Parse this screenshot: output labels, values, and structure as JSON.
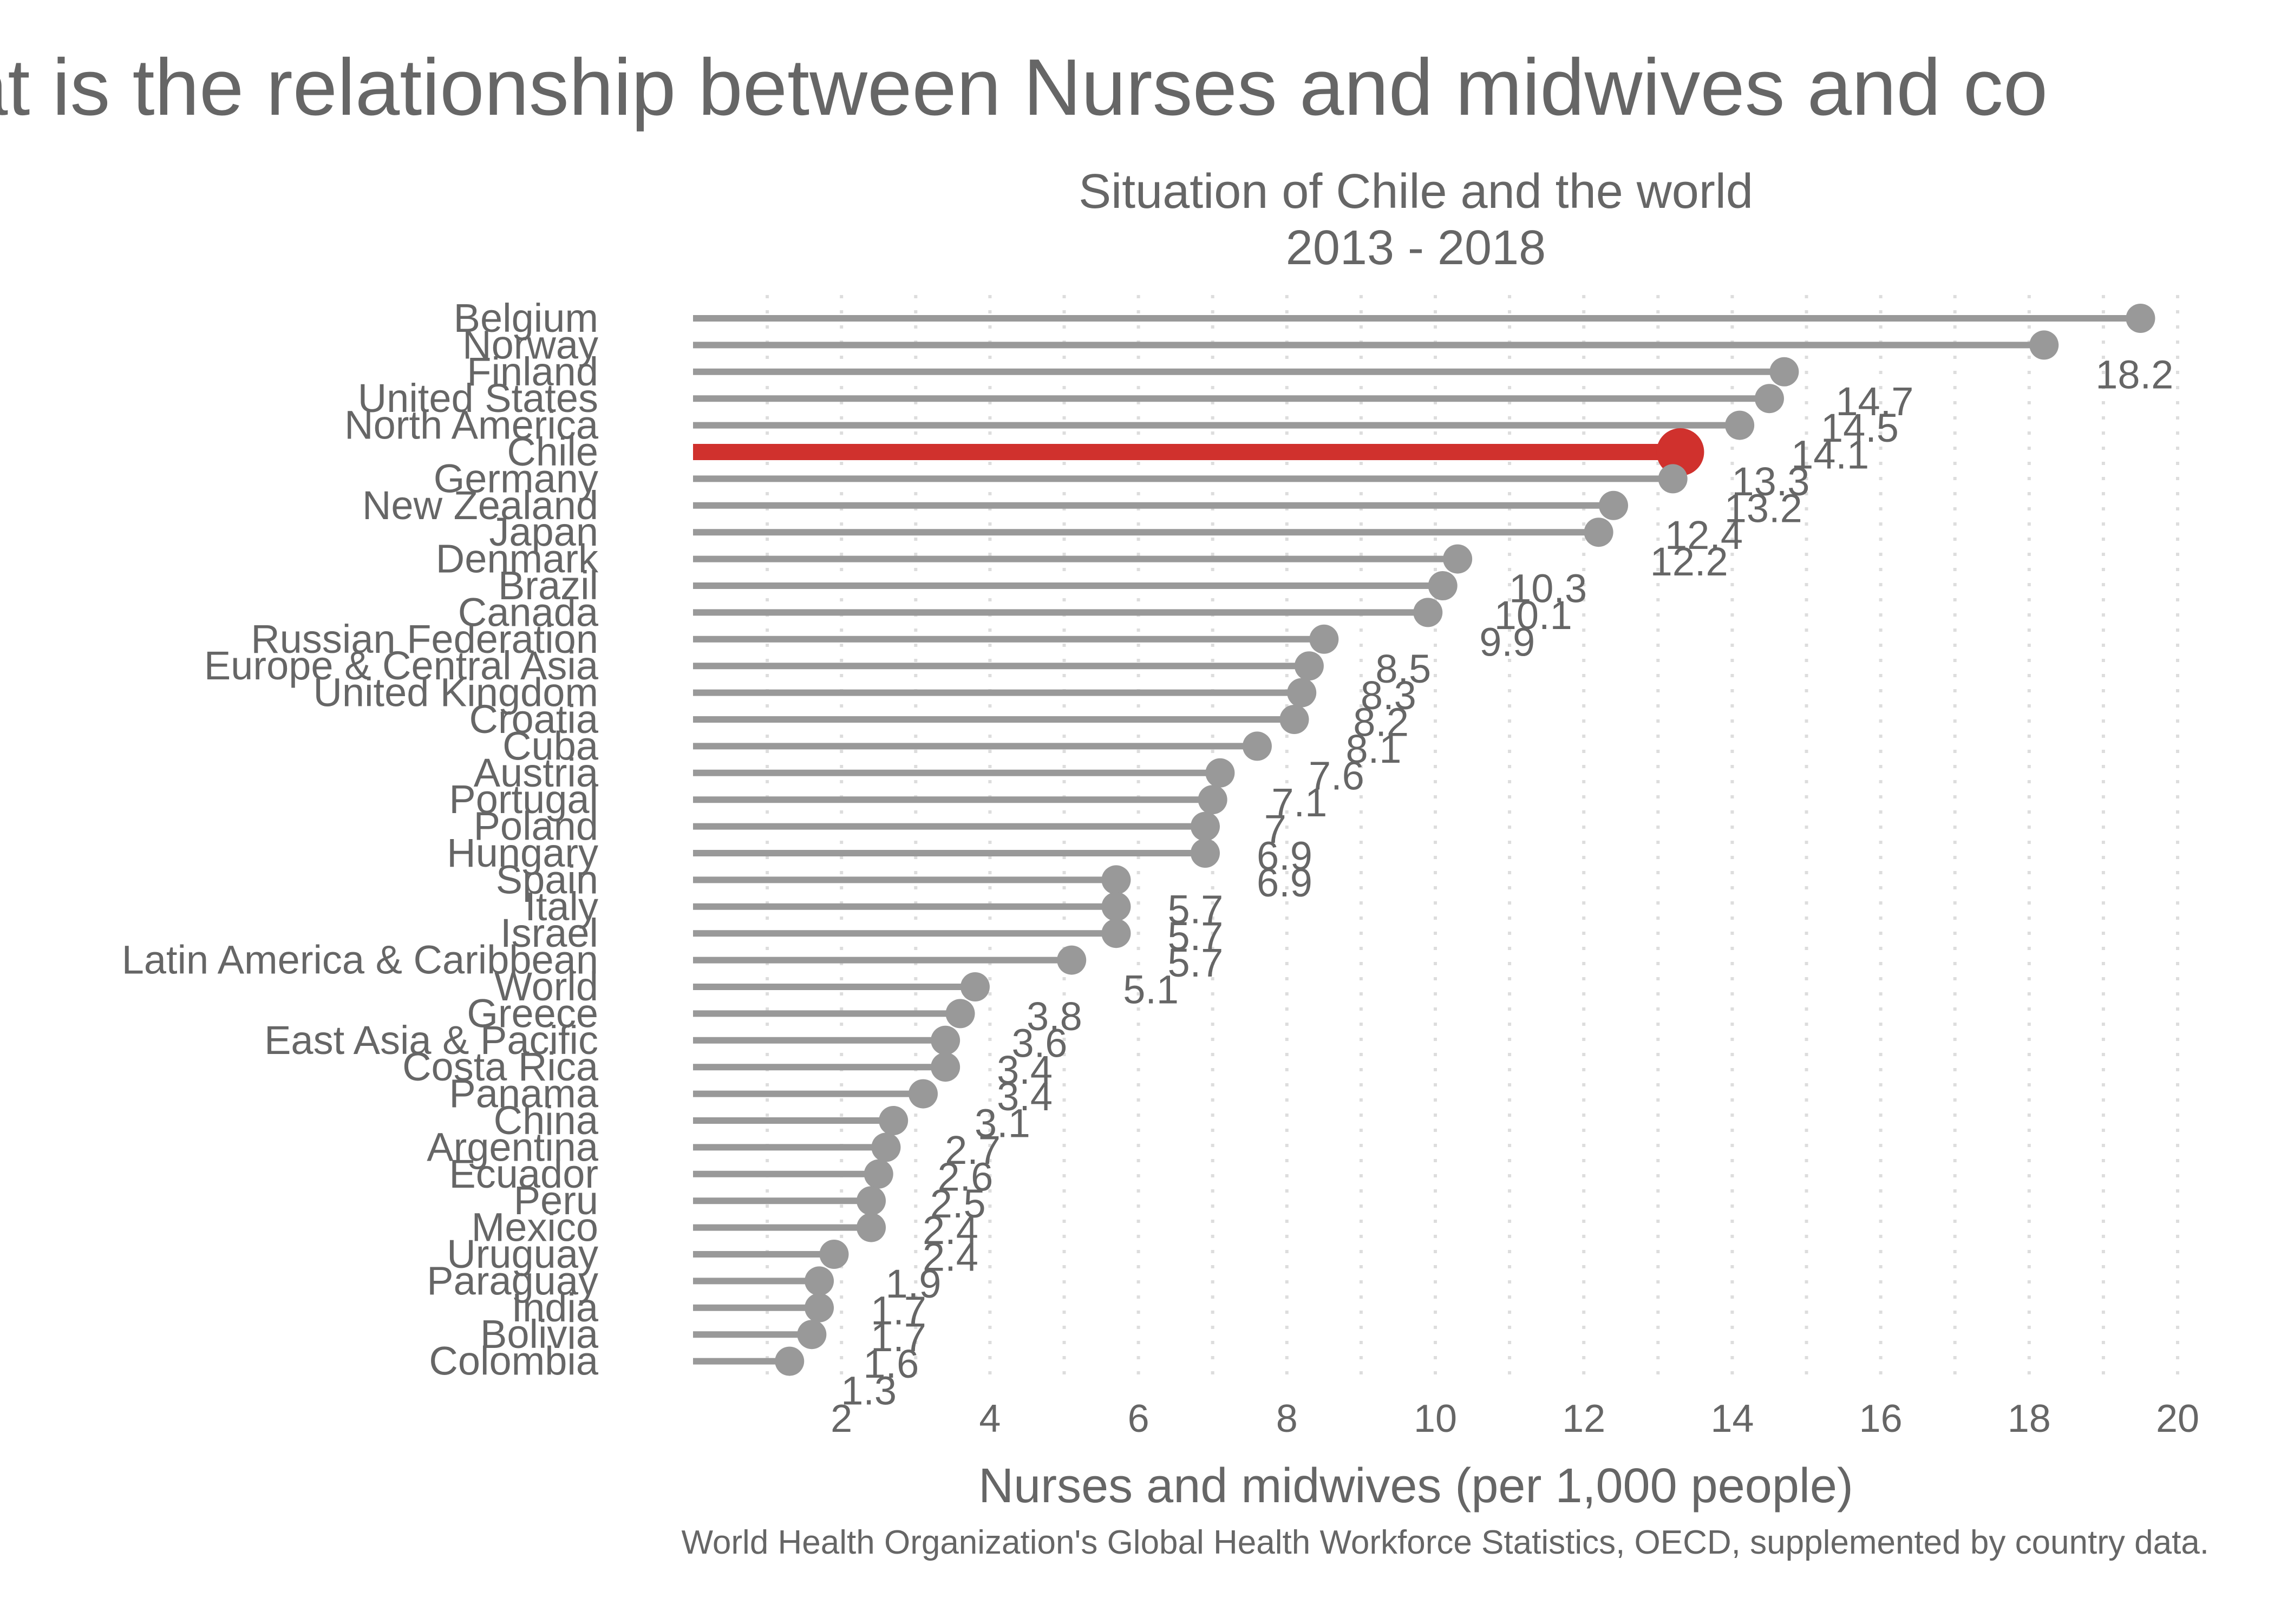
{
  "chart_data": {
    "type": "lollipop",
    "title": "What is the relationship between Nurses and midwives and co",
    "subtitle_line1": "Situation of Chile and the world",
    "subtitle_line2": "2013 - 2018",
    "xlabel": "Nurses and midwives (per 1,000 people)",
    "caption": "World Health Organization's Global Health Workforce Statistics, OECD, supplemented by country data.",
    "xlim": [
      0,
      20
    ],
    "x_ticks": [
      2,
      4,
      6,
      8,
      10,
      12,
      14,
      16,
      18,
      20
    ],
    "grid": "vertical-dotted",
    "highlight": "Chile",
    "colors": {
      "default": "#999999",
      "highlight": "#d0312d",
      "text": "#666666",
      "grid": "#dddddd"
    },
    "categories": [
      "Belgium",
      "Norway",
      "Finland",
      "United States",
      "North America",
      "Chile",
      "Germany",
      "New Zealand",
      "Japan",
      "Denmark",
      "Brazil",
      "Canada",
      "Russian Federation",
      "Europe & Central Asia",
      "United Kingdom",
      "Croatia",
      "Cuba",
      "Austria",
      "Portugal",
      "Poland",
      "Hungary",
      "Spain",
      "Italy",
      "Israel",
      "Latin America & Caribbean",
      "World",
      "Greece",
      "East Asia & Pacific",
      "Costa Rica",
      "Panama",
      "China",
      "Argentina",
      "Ecuador",
      "Peru",
      "Mexico",
      "Uruguay",
      "Paraguay",
      "India",
      "Bolivia",
      "Colombia"
    ],
    "values": [
      19.5,
      18.2,
      14.7,
      14.5,
      14.1,
      13.3,
      13.2,
      12.4,
      12.2,
      10.3,
      10.1,
      9.9,
      8.5,
      8.3,
      8.2,
      8.1,
      7.6,
      7.1,
      7,
      6.9,
      6.9,
      5.7,
      5.7,
      5.7,
      5.1,
      3.8,
      3.6,
      3.4,
      3.4,
      3.1,
      2.7,
      2.6,
      2.5,
      2.4,
      2.4,
      1.9,
      1.7,
      1.7,
      1.6,
      1.3
    ],
    "value_labels": [
      "",
      "18.2",
      "14.7",
      "14.5",
      "14.1",
      "13.3",
      "13.2",
      "12.4",
      "12.2",
      "10.3",
      "10.1",
      "9.9",
      "8.5",
      "8.3",
      "8.2",
      "8.1",
      "7.6",
      "7.1",
      "7",
      "6.9",
      "6.9",
      "5.7",
      "5.7",
      "5.7",
      "5.1",
      "3.8",
      "3.6",
      "3.4",
      "3.4",
      "3.1",
      "2.7",
      "2.6",
      "2.5",
      "2.4",
      "2.4",
      "1.9",
      "1.7",
      "1.7",
      "1.6",
      "1.3"
    ]
  }
}
